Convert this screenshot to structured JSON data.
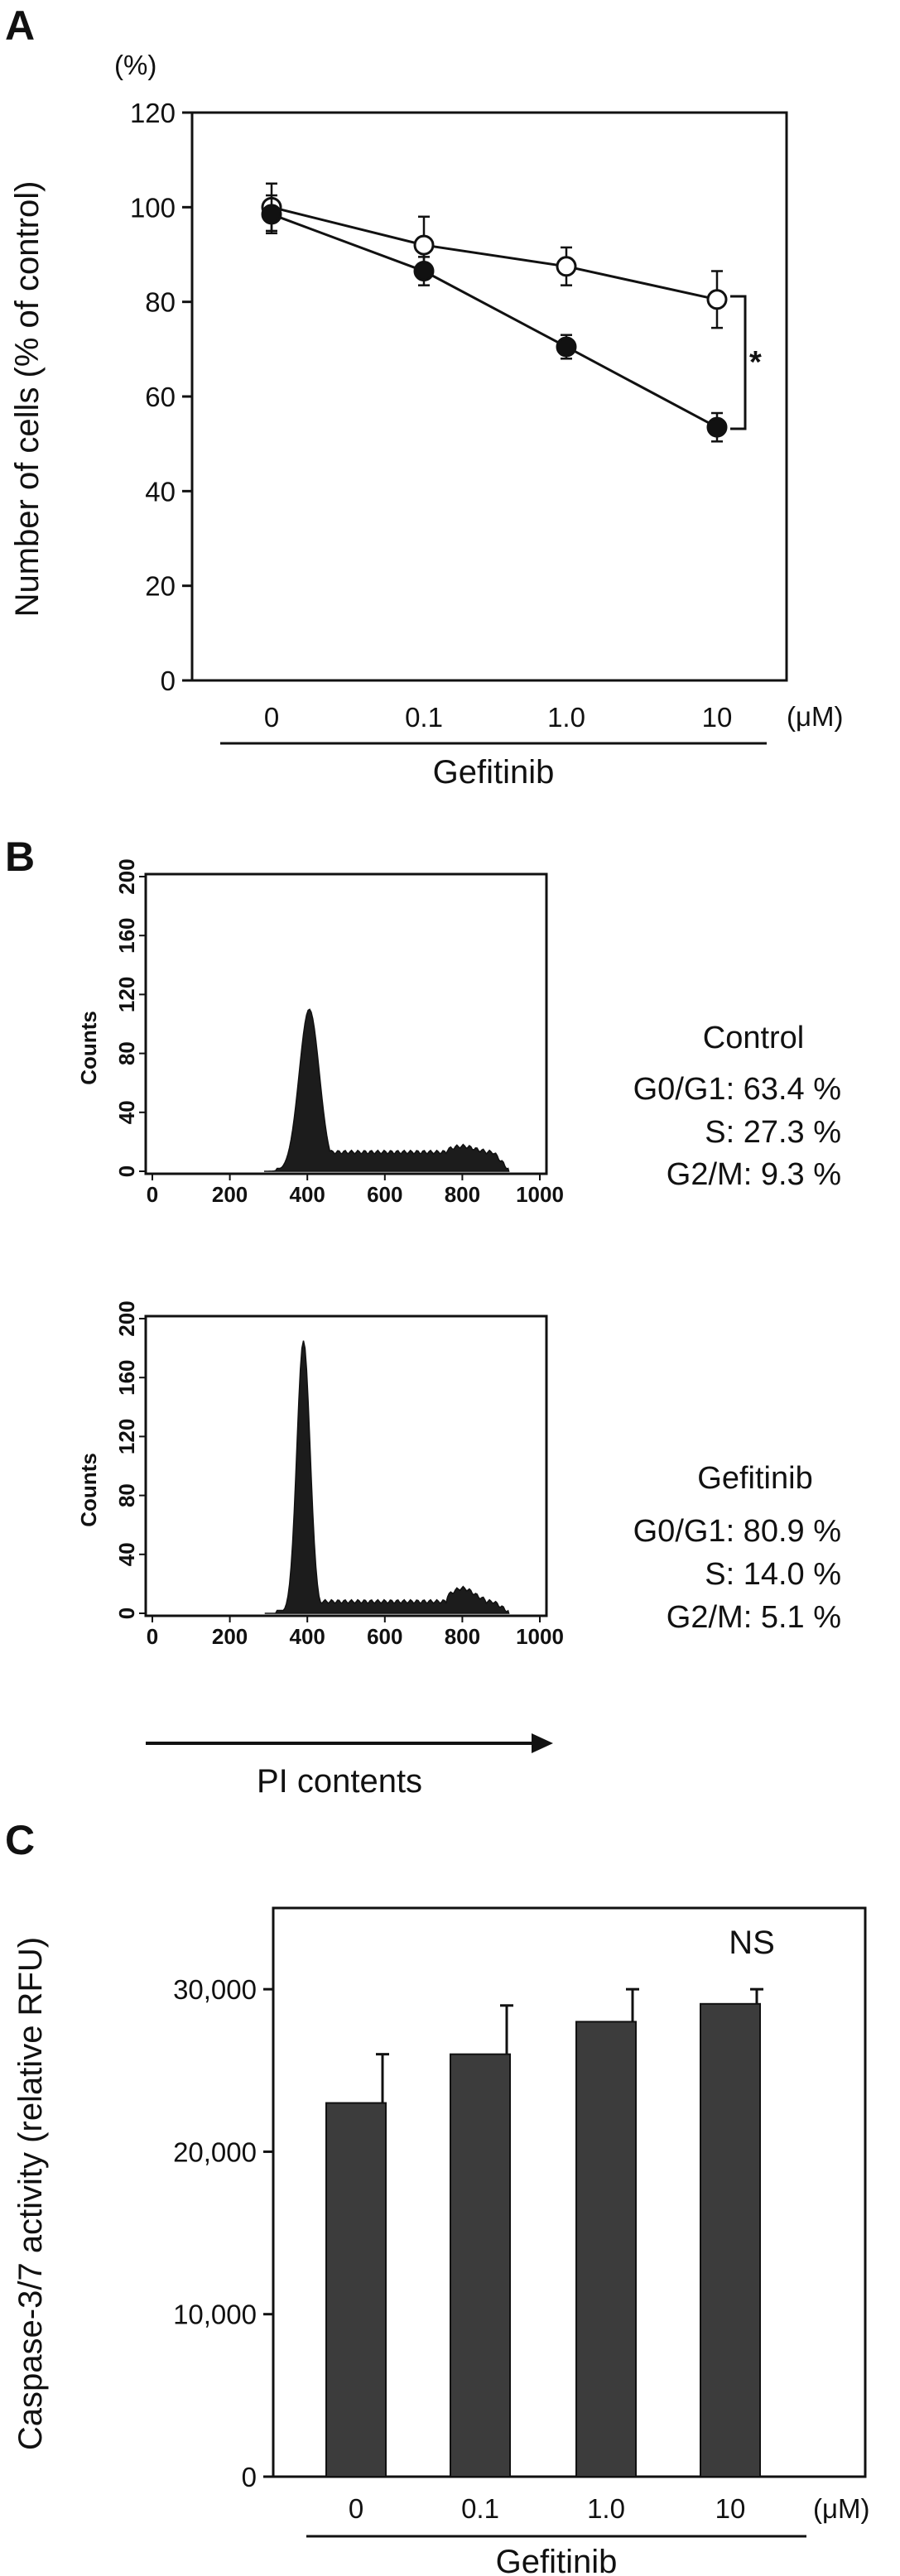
{
  "colors": {
    "ink": "#111111",
    "bar": "#3c3c3c",
    "hist": "#1c1c1c",
    "open_marker": "#ffffff"
  },
  "panels": {
    "A": {
      "letter": "A"
    },
    "B": {
      "letter": "B"
    },
    "C": {
      "letter": "C"
    }
  },
  "chart_data": [
    {
      "panel": "A",
      "type": "line",
      "ylabel": "Number of cells (% of control)",
      "y_unit_label": "(%)",
      "x_unit_label": "(μM)",
      "group_label": "Gefitinib",
      "categories": [
        "0",
        "0.1",
        "1.0",
        "10"
      ],
      "ylim": [
        0,
        120
      ],
      "yticks": [
        "0",
        "20",
        "40",
        "60",
        "80",
        "100",
        "120"
      ],
      "series": [
        {
          "marker": "open",
          "values": [
            100,
            92,
            87.5,
            80.5
          ],
          "errors": [
            5,
            6,
            4,
            6
          ]
        },
        {
          "marker": "filled",
          "values": [
            98.5,
            86.5,
            70.5,
            53.5
          ],
          "errors": [
            4,
            3,
            2.5,
            3
          ]
        }
      ],
      "annotation": "*",
      "grid": false,
      "legend": "none"
    },
    {
      "panel": "B",
      "type": "area",
      "subplots": [
        {
          "name": "Control",
          "ylabel": "Counts",
          "xlim": [
            0,
            1000
          ],
          "ylim": [
            0,
            200
          ],
          "xticks": [
            "0",
            "200",
            "400",
            "600",
            "800",
            "1000"
          ],
          "yticks": [
            "0",
            "40",
            "80",
            "120",
            "160",
            "200"
          ],
          "peak": {
            "x": 405,
            "y": 110
          },
          "stats": {
            "title": "Control",
            "lines": [
              "G0/G1: 63.4 %",
              "S: 27.3 %",
              "G2/M: 9.3 %"
            ]
          }
        },
        {
          "name": "Gefitinib",
          "ylabel": "Counts",
          "xlim": [
            0,
            1000
          ],
          "ylim": [
            0,
            200
          ],
          "xticks": [
            "0",
            "200",
            "400",
            "600",
            "800",
            "1000"
          ],
          "yticks": [
            "0",
            "40",
            "80",
            "120",
            "160",
            "200"
          ],
          "peak": {
            "x": 390,
            "y": 185
          },
          "stats": {
            "title": "Gefitinib",
            "lines": [
              "G0/G1: 80.9 %",
              "S: 14.0 %",
              "G2/M: 5.1 %"
            ]
          }
        }
      ],
      "xlabel": "PI contents"
    },
    {
      "panel": "C",
      "type": "bar",
      "ylabel": "Caspase-3/7 activity (relative RFU)",
      "x_unit_label": "(μM)",
      "group_label": "Gefitinib",
      "categories": [
        "0",
        "0.1",
        "1.0",
        "10"
      ],
      "values": [
        23000,
        26000,
        28000,
        29100
      ],
      "errors": [
        3000,
        3000,
        2000,
        900
      ],
      "ylim": [
        0,
        35000
      ],
      "yticks": [
        "0",
        "10,000",
        "20,000",
        "30,000"
      ],
      "annotation": "NS",
      "grid": false,
      "legend": "none"
    }
  ]
}
